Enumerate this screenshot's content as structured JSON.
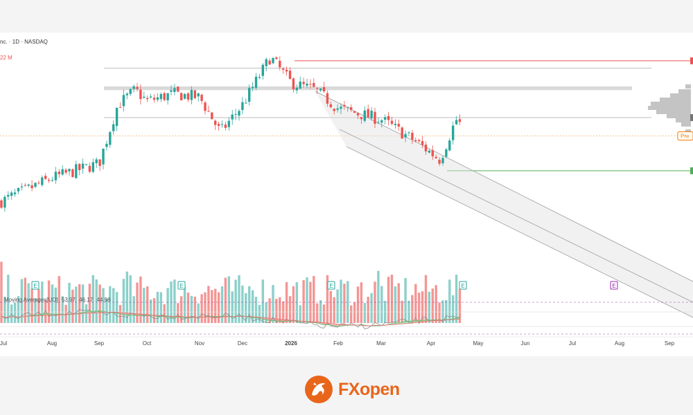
{
  "header": {
    "symbol_line": "nc. · 1D · NASDAQ",
    "volume_label": "22 M"
  },
  "oscillator": {
    "name": "Moving Averages[UO]",
    "values": [
      "53.97",
      "46.17",
      "44.98"
    ]
  },
  "price_badge": {
    "label": "Pre"
  },
  "logo": {
    "fx": "FX",
    "open": "open"
  },
  "colors": {
    "up": "#26a69a",
    "down": "#ef5350",
    "resistance": "#ef5350",
    "support": "#4caf50",
    "premarket": "#f57c00",
    "uo_purple": "#9c27b0"
  },
  "chart_data": {
    "type": "candlestick",
    "x_ticks": [
      "Jul",
      "Aug",
      "Sep",
      "Oct",
      "Nov",
      "Dec",
      "2026",
      "Feb",
      "Mar",
      "Apr",
      "May",
      "Jun",
      "Jul",
      "Aug",
      "Sep"
    ],
    "earnings_markers": [
      "E",
      "E",
      "E",
      "E",
      "E"
    ],
    "earnings_at": [
      "Jul",
      "Oct",
      "Jan",
      "Apr",
      "Jul"
    ],
    "price_range": [
      0,
      100
    ],
    "close_path_keypoints": [
      {
        "date": "Jul",
        "close": 17
      },
      {
        "date": "Aug",
        "close": 30
      },
      {
        "date": "Sep",
        "close": 38
      },
      {
        "date": "mid-Sep",
        "close": 70
      },
      {
        "date": "early-Oct",
        "close": 78
      },
      {
        "date": "Oct",
        "close": 72
      },
      {
        "date": "mid-Oct",
        "close": 76
      },
      {
        "date": "Nov",
        "close": 74
      },
      {
        "date": "mid-Nov",
        "close": 55
      },
      {
        "date": "Dec",
        "close": 70
      },
      {
        "date": "late-Dec",
        "close": 96
      },
      {
        "date": "2026",
        "close": 82
      },
      {
        "date": "mid-Jan",
        "close": 78
      },
      {
        "date": "Feb",
        "close": 68
      },
      {
        "date": "Mar",
        "close": 62
      },
      {
        "date": "late-Mar",
        "close": 50
      },
      {
        "date": "early-Apr",
        "close": 40
      },
      {
        "date": "mid-Apr",
        "close": 62
      },
      {
        "date": "Apr-end",
        "close": 58
      }
    ],
    "horizontal_levels": {
      "resistance": 94,
      "upper_gray": 90,
      "zone_top": 80,
      "zone_bottom": 78,
      "lower_gray": 63,
      "premarket": 53,
      "support": 34
    },
    "regression_channel": {
      "from": "mid-Jan",
      "to": "Sep",
      "note": "downward parallel channel with grey fill"
    }
  }
}
